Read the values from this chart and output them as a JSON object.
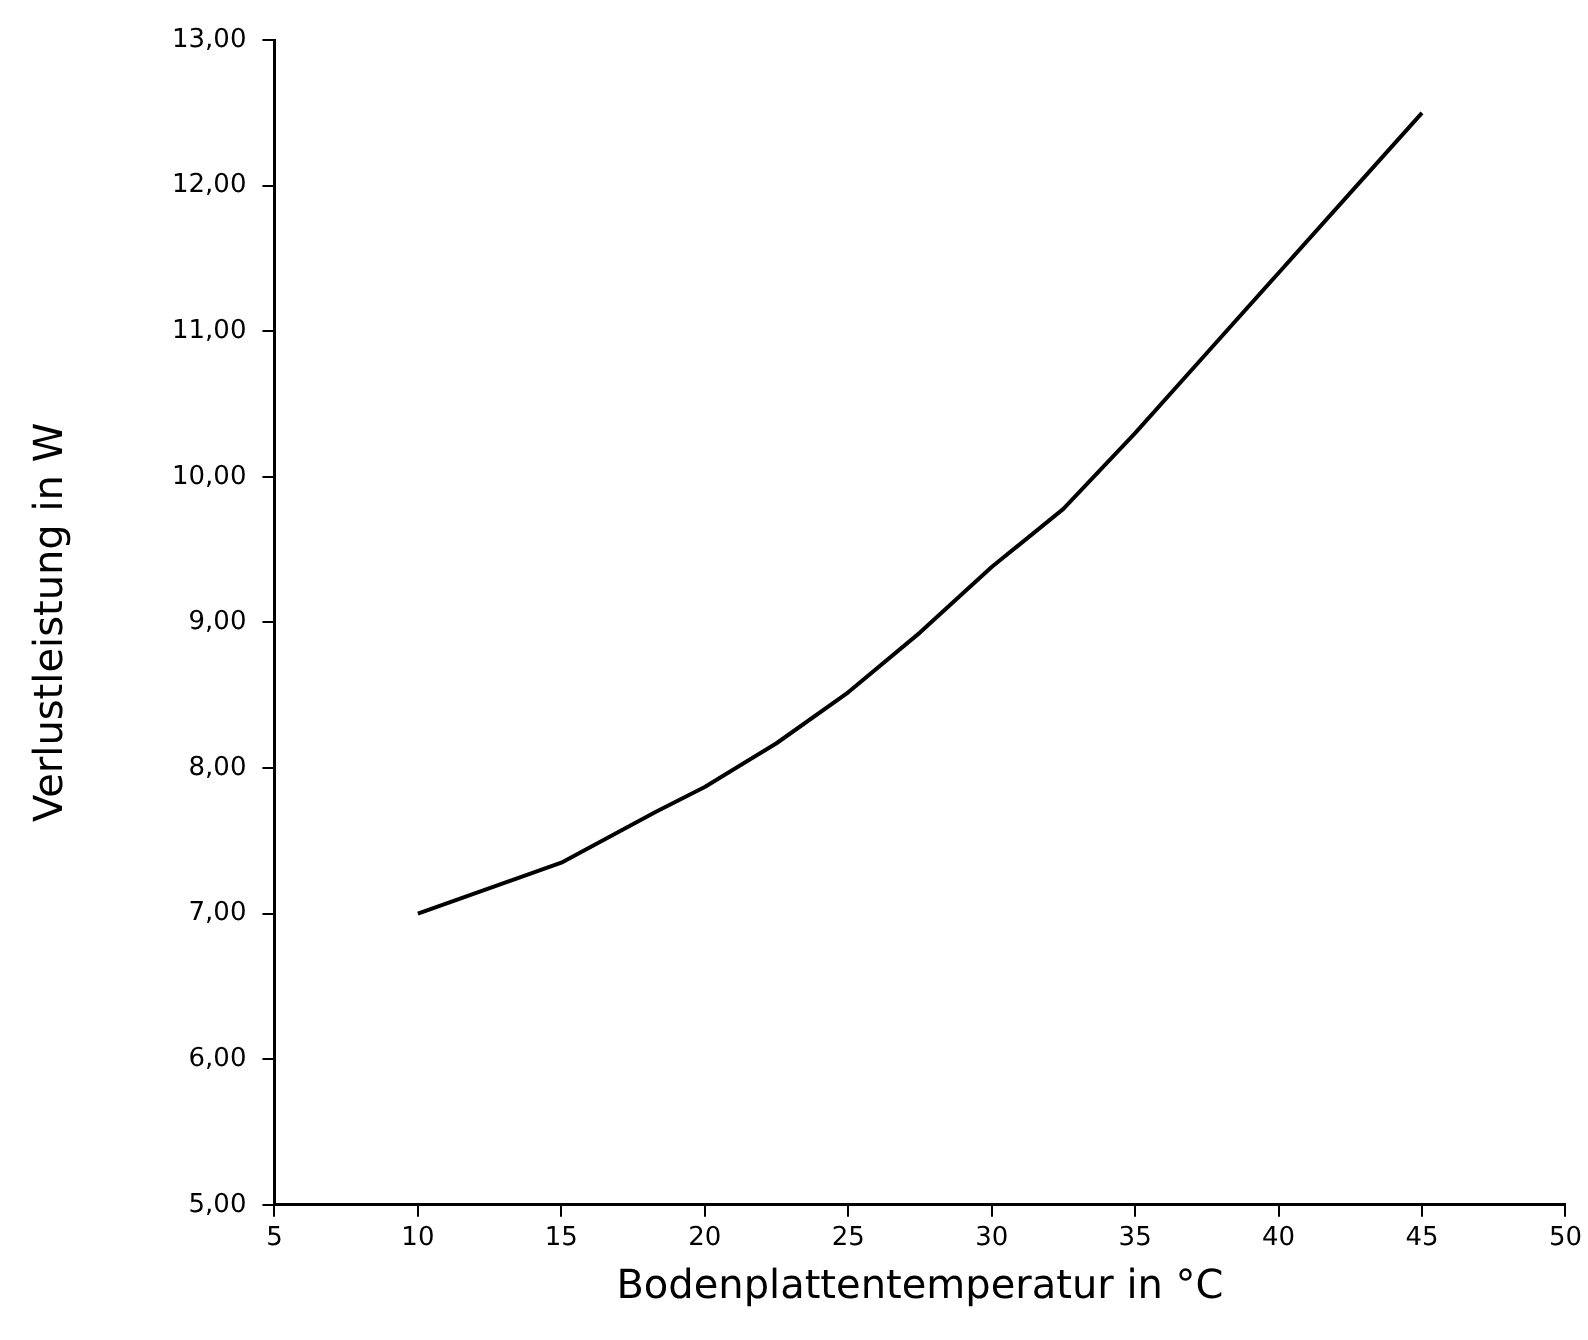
{
  "chart_data": {
    "type": "line",
    "xlabel": "Bodenplattentemperatur in °C",
    "ylabel": "Verlustleistung in W",
    "x": [
      10,
      15,
      18.3,
      20,
      22.5,
      25,
      27.5,
      30,
      32.5,
      35,
      37.5,
      40,
      42.5,
      45
    ],
    "series": [
      {
        "color": "#000000",
        "values": [
          7.0,
          7.35,
          7.7,
          7.87,
          8.17,
          8.52,
          8.93,
          9.38,
          9.78,
          10.3,
          10.85,
          11.4,
          11.95,
          12.5
        ]
      }
    ],
    "xlim": [
      5,
      50
    ],
    "xticks": [
      5,
      10,
      15,
      20,
      25,
      30,
      35,
      40,
      45,
      50
    ],
    "ylim": [
      5,
      13
    ],
    "yticks": [
      {
        "value": 5,
        "label": "5,00"
      },
      {
        "value": 6,
        "label": "6,00"
      },
      {
        "value": 7,
        "label": "7,00"
      },
      {
        "value": 8,
        "label": "8,00"
      },
      {
        "value": 9,
        "label": "9,00"
      },
      {
        "value": 10,
        "label": "10,00"
      },
      {
        "value": 11,
        "label": "11,00"
      },
      {
        "value": 12,
        "label": "12,00"
      },
      {
        "value": 13,
        "label": "13,00"
      }
    ],
    "grid": false,
    "legend": false,
    "marker": "none",
    "line_style": "solid"
  }
}
